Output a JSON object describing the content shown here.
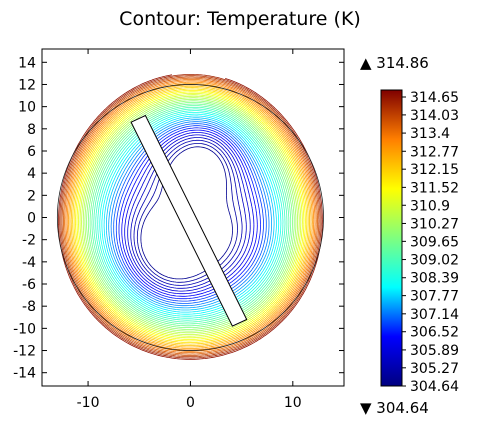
{
  "chart_data": {
    "type": "contour",
    "title": "Contour: Temperature (K)",
    "xlabel": "",
    "ylabel": "",
    "xlim": [
      -14.5,
      15
    ],
    "ylim": [
      -15.2,
      15.2
    ],
    "x_ticks": [
      "-10",
      "0",
      "10"
    ],
    "x_tick_values": [
      -10,
      0,
      10
    ],
    "y_ticks": [
      "14",
      "12",
      "10",
      "8",
      "6",
      "4",
      "2",
      "0",
      "-2",
      "-4",
      "-6",
      "-8",
      "-10",
      "-12",
      "-14"
    ],
    "y_tick_values": [
      14,
      12,
      10,
      8,
      6,
      4,
      2,
      0,
      -2,
      -4,
      -6,
      -8,
      -10,
      -12,
      -14
    ],
    "field": "Temperature",
    "unit": "K",
    "domain": {
      "shape": "circle",
      "center": [
        0,
        0
      ],
      "radius": 13
    },
    "obstacle": {
      "shape": "rotated rectangle",
      "corners": [
        [
          -5.8,
          8.6
        ],
        [
          -4.4,
          9.2
        ],
        [
          5.5,
          -9.2
        ],
        [
          4.1,
          -9.8
        ]
      ]
    },
    "hot_spot_centers": [
      [
        1.5,
        6
      ],
      [
        -1.5,
        -4
      ]
    ],
    "max_marker": "▲ 314.86",
    "min_marker": "▼ 304.64",
    "max_value": 314.86,
    "min_value": 304.64,
    "colorbar": {
      "ticks": [
        "314.65",
        "314.03",
        "313.4",
        "312.77",
        "312.15",
        "311.52",
        "310.9",
        "310.27",
        "309.65",
        "309.02",
        "308.39",
        "307.77",
        "307.14",
        "306.52",
        "305.89",
        "305.27",
        "304.64"
      ],
      "tick_values": [
        314.65,
        314.03,
        313.4,
        312.77,
        312.15,
        311.52,
        310.9,
        310.27,
        309.65,
        309.02,
        308.39,
        307.77,
        307.14,
        306.52,
        305.89,
        305.27,
        304.64
      ],
      "colormap": "rainbow",
      "colors": [
        "#00007f",
        "#0000ff",
        "#00ffff",
        "#7fff7f",
        "#ffff00",
        "#ff7f00",
        "#7f0000"
      ]
    },
    "grid": false,
    "legend": "colorbar-right"
  }
}
